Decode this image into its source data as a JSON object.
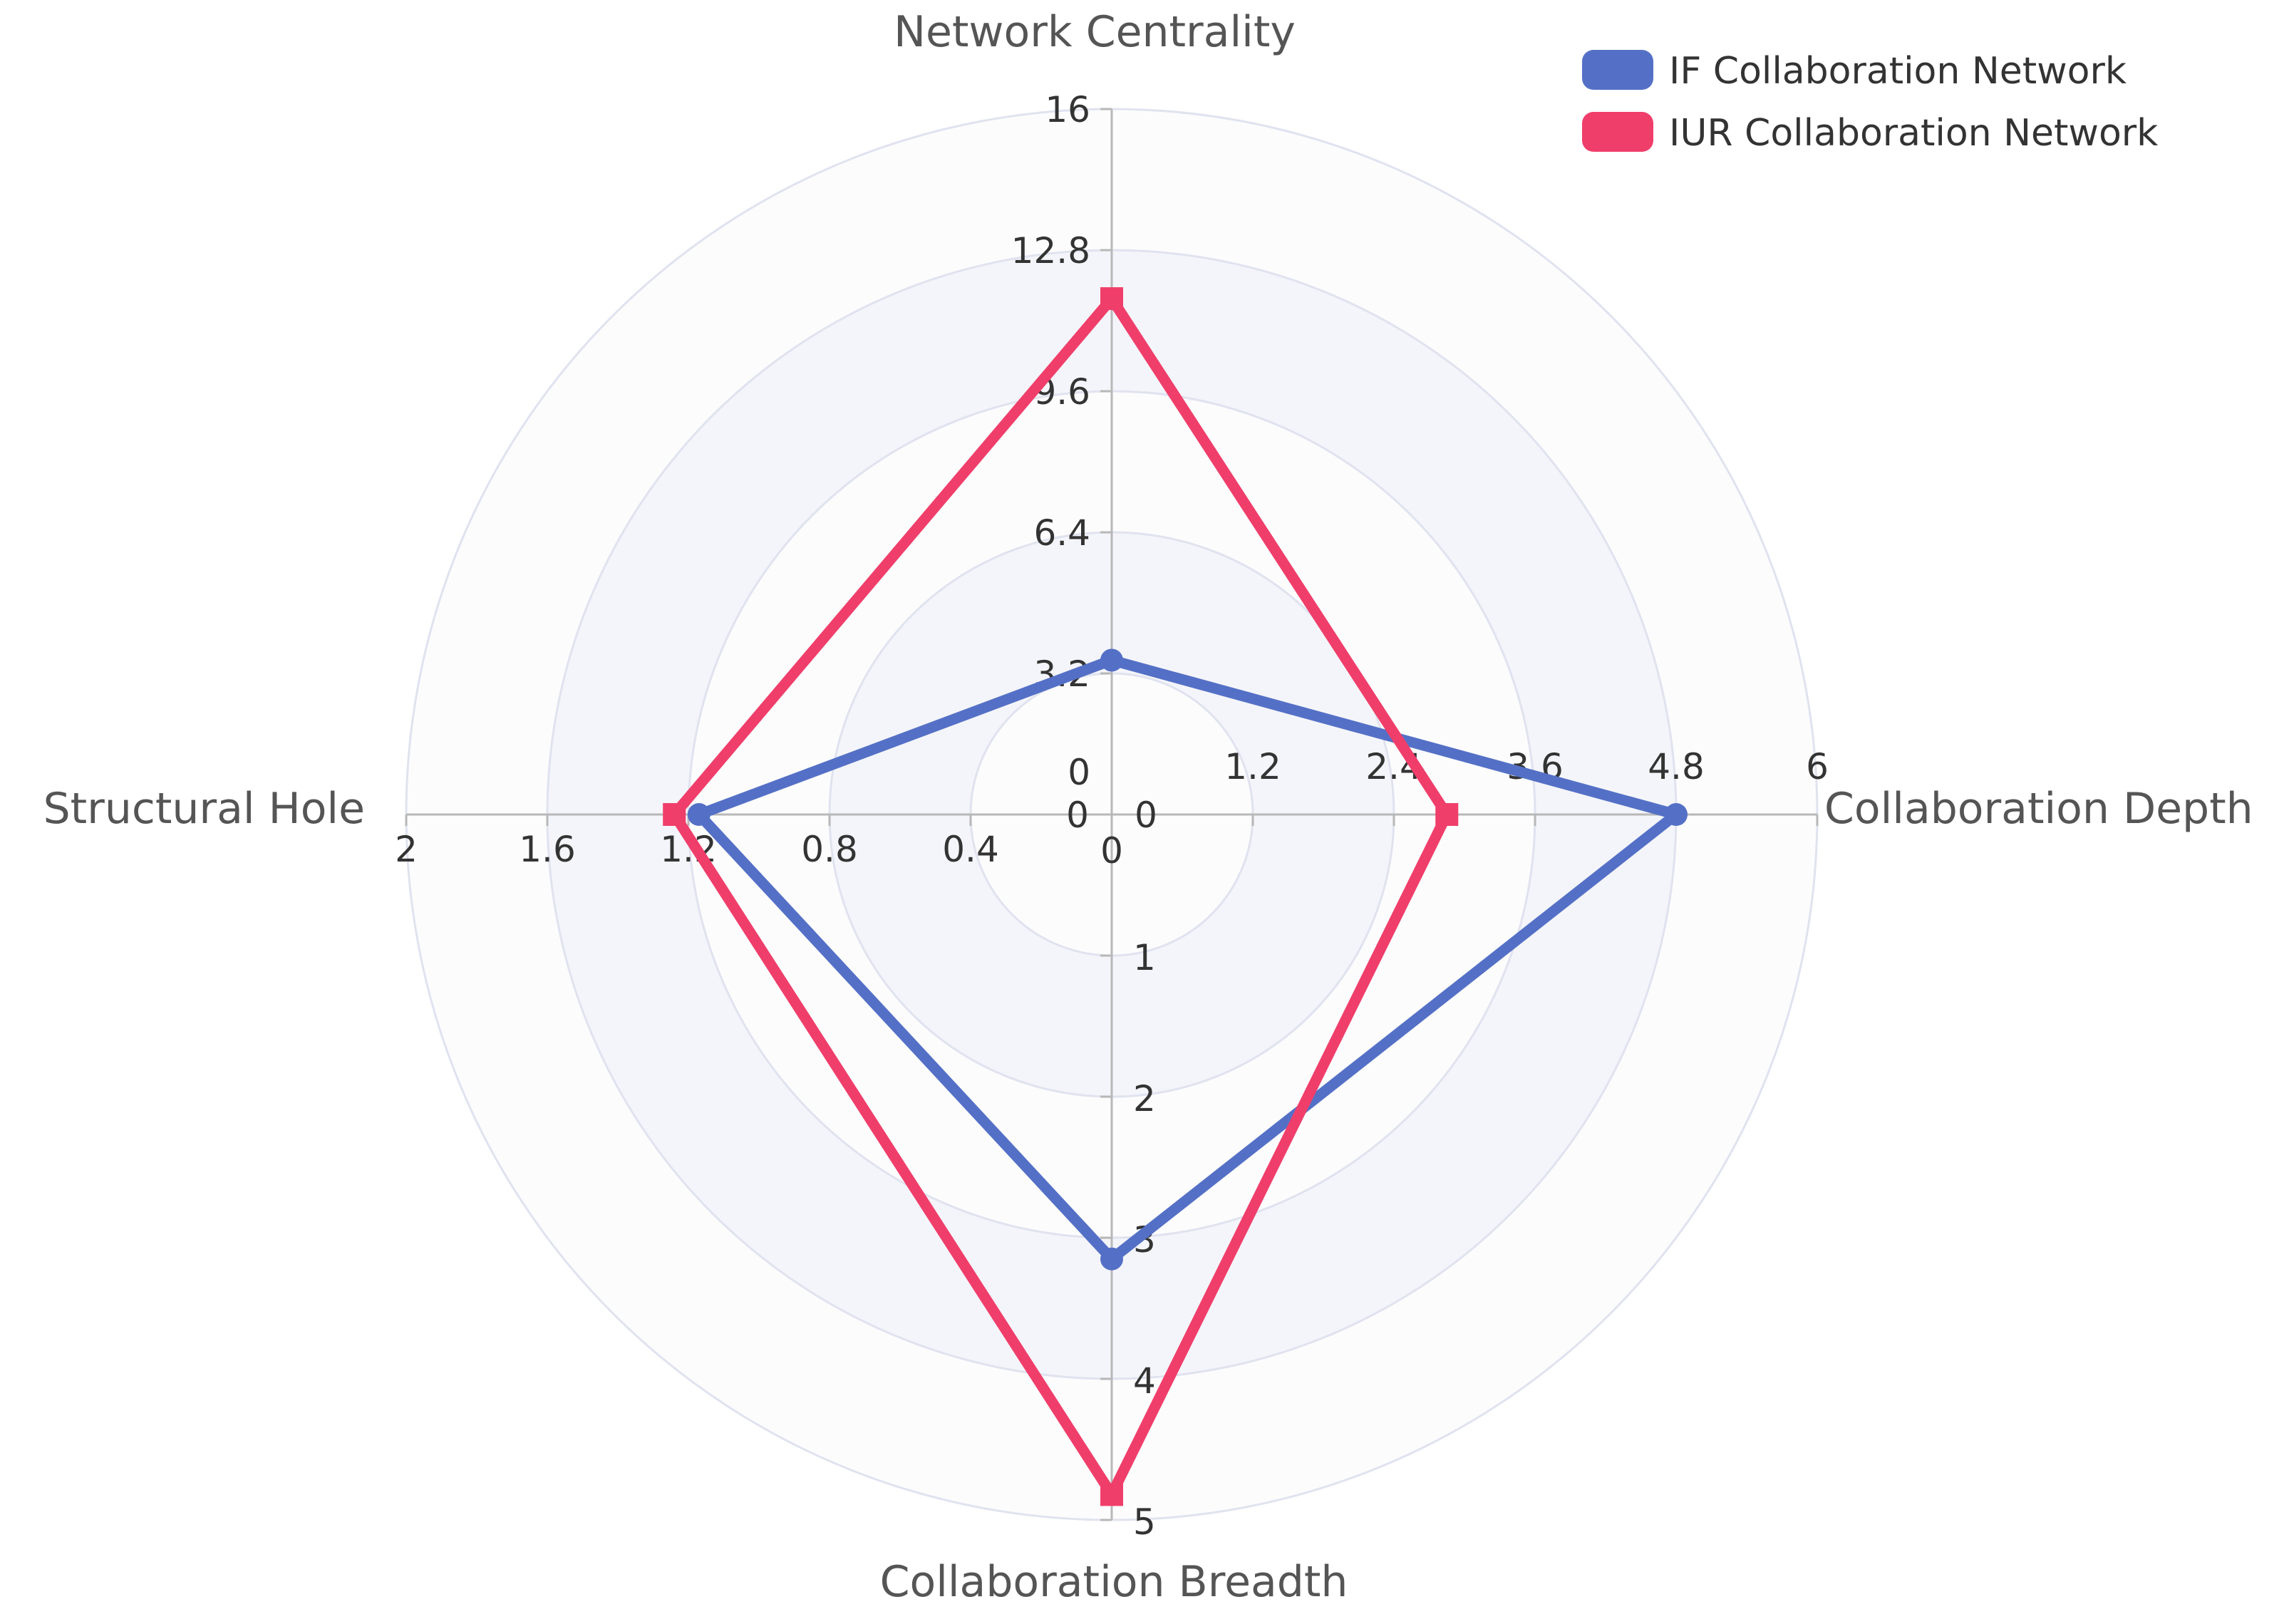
{
  "chart_data": {
    "type": "radar",
    "indicators": [
      {
        "name": "Network Centrality",
        "max": 16,
        "ticks": [
          "0",
          "3.2",
          "6.4",
          "9.6",
          "12.8",
          "16"
        ]
      },
      {
        "name": "Collaboration Depth",
        "max": 6,
        "ticks": [
          "0",
          "1.2",
          "2.4",
          "3.6",
          "4.8",
          "6"
        ]
      },
      {
        "name": "Collaboration Breadth",
        "max": 5,
        "ticks": [
          "0",
          "1",
          "2",
          "3",
          "4",
          "5"
        ]
      },
      {
        "name": "Structural Hole",
        "max": 2,
        "ticks": [
          "0",
          "0.4",
          "0.8",
          "1.2",
          "1.6",
          "2"
        ]
      }
    ],
    "series": [
      {
        "name": "IF Collaboration Network",
        "color": "#5470c6",
        "marker": "circle",
        "values": [
          3.5,
          4.8,
          3.15,
          1.17
        ]
      },
      {
        "name": "IUR Collaboration Network",
        "color": "#f03e6a",
        "marker": "square",
        "values": [
          11.7,
          2.85,
          4.82,
          1.24
        ]
      }
    ],
    "legend_position": "top-right",
    "split_area_colors": [
      "#fcfcfd",
      "#f4f5fa"
    ],
    "grid_color": "#e0e3ef",
    "axis_color": "#b8b8b8"
  }
}
